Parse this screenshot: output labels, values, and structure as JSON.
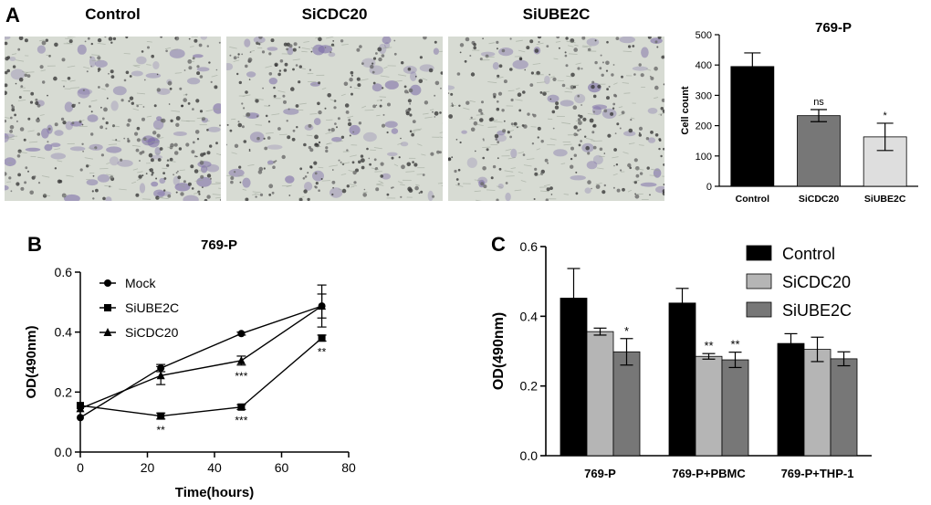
{
  "panels": {
    "A": {
      "letter": "A",
      "images": [
        "Control",
        "SiCDC20",
        "SiUBE2C"
      ]
    },
    "B": {
      "letter": "B"
    },
    "C": {
      "letter": "C"
    }
  },
  "colors": {
    "black": "#000000",
    "mid_grey": "#777777",
    "light_grey": "#b5b5b5",
    "very_light_grey": "#dedede",
    "micro_bg": "#d7dbd3",
    "stain": "#7a6aa6"
  },
  "chart_data": [
    {
      "id": "A",
      "type": "bar",
      "title": "769-P",
      "xlabel": "",
      "ylabel": "Cell count",
      "ylim": [
        0,
        500
      ],
      "yticks": [
        0,
        100,
        200,
        300,
        400,
        500
      ],
      "categories": [
        "Control",
        "SiCDC20",
        "SiUBE2C"
      ],
      "values": [
        395,
        233,
        163
      ],
      "errors": [
        45,
        20,
        45
      ],
      "annotations": [
        "",
        "ns",
        "*"
      ],
      "bar_colors": [
        "#000000",
        "#777777",
        "#dedede"
      ]
    },
    {
      "id": "B",
      "type": "line",
      "title": "769-P",
      "xlabel": "Time(hours)",
      "ylabel": "OD(490nm)",
      "xlim": [
        0,
        80
      ],
      "ylim": [
        0,
        0.6
      ],
      "xticks": [
        0,
        20,
        40,
        60,
        80
      ],
      "yticks": [
        0.0,
        0.2,
        0.4,
        0.6
      ],
      "x": [
        0,
        24,
        48,
        72
      ],
      "series": [
        {
          "name": "Mock",
          "marker": "circle",
          "values": [
            0.115,
            0.28,
            0.395,
            0.487
          ],
          "errors": [
            0,
            0.012,
            0.005,
            0.07
          ]
        },
        {
          "name": "SiUBE2C",
          "marker": "square",
          "values": [
            0.155,
            0.12,
            0.15,
            0.38
          ],
          "errors": [
            0,
            0.01,
            0.008,
            0.01
          ],
          "annotations": [
            "",
            "**",
            "***",
            "**"
          ]
        },
        {
          "name": "SiCDC20",
          "marker": "triangle",
          "values": [
            0.145,
            0.255,
            0.305,
            0.487
          ],
          "errors": [
            0,
            0.03,
            0.015,
            0.04
          ],
          "annotations": [
            "",
            "",
            "***",
            ""
          ]
        }
      ],
      "legend": "top-left"
    },
    {
      "id": "C",
      "type": "bar",
      "title": "",
      "xlabel": "",
      "ylabel": "OD(490nm)",
      "ylim": [
        0,
        0.6
      ],
      "yticks": [
        0.0,
        0.2,
        0.4,
        0.6
      ],
      "categories": [
        "769-P",
        "769-P+PBMC",
        "769-P+THP-1"
      ],
      "series": [
        {
          "name": "Control",
          "color": "#000000",
          "values": [
            0.452,
            0.438,
            0.322
          ],
          "errors": [
            0.085,
            0.042,
            0.028
          ],
          "annotations": [
            "",
            "",
            ""
          ]
        },
        {
          "name": "SiCDC20",
          "color": "#b5b5b5",
          "values": [
            0.356,
            0.285,
            0.305
          ],
          "errors": [
            0.01,
            0.008,
            0.035
          ],
          "annotations": [
            "",
            "**",
            ""
          ]
        },
        {
          "name": "SiUBE2C",
          "color": "#777777",
          "values": [
            0.298,
            0.275,
            0.278
          ],
          "errors": [
            0.038,
            0.022,
            0.02
          ],
          "annotations": [
            "*",
            "**",
            ""
          ]
        }
      ],
      "legend": "top-right"
    }
  ]
}
